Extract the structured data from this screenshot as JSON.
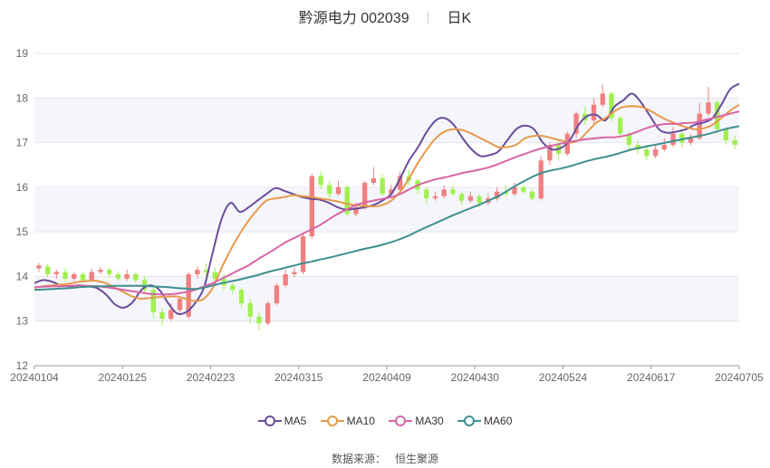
{
  "header": {
    "title": "黔源电力 002039",
    "period": "日K"
  },
  "source": {
    "label": "数据来源：",
    "name": "恒生聚源"
  },
  "chart_data": {
    "type": "candlestick",
    "title": "黔源电力 002039",
    "x_ticks": [
      "20240104",
      "20240125",
      "20240223",
      "20240315",
      "20240409",
      "20240430",
      "20240524",
      "20240617",
      "20240705"
    ],
    "y_ticks": [
      "12",
      "13",
      "14",
      "15",
      "16",
      "17",
      "18",
      "19"
    ],
    "ylim": [
      12,
      19
    ],
    "grid": true,
    "legend_position": "bottom",
    "colors": {
      "up": "#f08080",
      "down": "#a0f050",
      "ma5": "#6a4c9c",
      "ma10": "#e69a4c",
      "ma30": "#d965a6",
      "ma60": "#3e8f8f"
    },
    "series": [
      {
        "name": "MA5",
        "color": "#6a4c9c",
        "values": [
          13.85,
          13.92,
          13.88,
          13.8,
          13.78,
          13.8,
          13.78,
          13.74,
          13.6,
          13.38,
          13.3,
          13.42,
          13.7,
          13.8,
          13.7,
          13.4,
          13.17,
          13.2,
          13.4,
          13.75,
          14.55,
          15.3,
          15.65,
          15.45,
          15.55,
          15.7,
          15.85,
          15.98,
          15.92,
          15.85,
          15.78,
          15.74,
          15.72,
          15.65,
          15.55,
          15.5,
          15.52,
          15.55,
          15.6,
          15.7,
          15.85,
          16.2,
          16.6,
          16.9,
          17.25,
          17.5,
          17.55,
          17.4,
          17.1,
          16.85,
          16.7,
          16.72,
          16.8,
          17.05,
          17.3,
          17.38,
          17.3,
          17.0,
          16.85,
          16.88,
          17.05,
          17.4,
          17.6,
          17.62,
          17.5,
          17.8,
          17.95,
          18.1,
          17.9,
          17.6,
          17.3,
          17.22,
          17.25,
          17.3,
          17.4,
          17.45,
          17.55,
          17.85,
          18.2,
          18.32
        ]
      },
      {
        "name": "MA10",
        "color": "#e69a4c",
        "values": [
          13.75,
          13.78,
          13.8,
          13.82,
          13.84,
          13.88,
          13.9,
          13.9,
          13.85,
          13.75,
          13.65,
          13.55,
          13.5,
          13.52,
          13.54,
          13.55,
          13.55,
          13.5,
          13.45,
          13.5,
          13.75,
          14.2,
          14.6,
          14.95,
          15.25,
          15.5,
          15.7,
          15.75,
          15.78,
          15.82,
          15.8,
          15.78,
          15.75,
          15.72,
          15.68,
          15.63,
          15.6,
          15.58,
          15.57,
          15.6,
          15.7,
          15.9,
          16.2,
          16.55,
          16.85,
          17.1,
          17.25,
          17.3,
          17.28,
          17.2,
          17.1,
          17.0,
          16.9,
          16.9,
          16.95,
          17.1,
          17.15,
          17.15,
          17.1,
          17.05,
          17.0,
          17.05,
          17.25,
          17.45,
          17.55,
          17.7,
          17.8,
          17.82,
          17.8,
          17.72,
          17.6,
          17.5,
          17.42,
          17.35,
          17.3,
          17.32,
          17.4,
          17.55,
          17.72,
          17.85
        ]
      },
      {
        "name": "MA30",
        "color": "#d965a6",
        "values": [
          13.76,
          13.77,
          13.78,
          13.78,
          13.79,
          13.79,
          13.79,
          13.78,
          13.76,
          13.73,
          13.7,
          13.67,
          13.64,
          13.61,
          13.6,
          13.6,
          13.62,
          13.65,
          13.7,
          13.78,
          13.85,
          13.95,
          14.05,
          14.15,
          14.25,
          14.38,
          14.5,
          14.62,
          14.75,
          14.85,
          14.95,
          15.05,
          15.15,
          15.28,
          15.4,
          15.5,
          15.6,
          15.66,
          15.7,
          15.74,
          15.78,
          15.85,
          15.95,
          16.05,
          16.12,
          16.18,
          16.22,
          16.27,
          16.32,
          16.36,
          16.4,
          16.45,
          16.52,
          16.6,
          16.68,
          16.75,
          16.82,
          16.88,
          16.93,
          16.98,
          17.02,
          17.05,
          17.08,
          17.1,
          17.12,
          17.12,
          17.15,
          17.2,
          17.28,
          17.35,
          17.4,
          17.42,
          17.42,
          17.44,
          17.45,
          17.5,
          17.55,
          17.6,
          17.65,
          17.7
        ]
      },
      {
        "name": "MA60",
        "color": "#3e8f8f",
        "values": [
          13.7,
          13.71,
          13.72,
          13.73,
          13.74,
          13.76,
          13.77,
          13.78,
          13.78,
          13.79,
          13.79,
          13.79,
          13.79,
          13.78,
          13.77,
          13.76,
          13.74,
          13.73,
          13.72,
          13.75,
          13.8,
          13.85,
          13.89,
          13.93,
          13.98,
          14.03,
          14.09,
          14.14,
          14.19,
          14.24,
          14.29,
          14.33,
          14.38,
          14.42,
          14.47,
          14.52,
          14.57,
          14.62,
          14.66,
          14.71,
          14.77,
          14.84,
          14.92,
          15.02,
          15.11,
          15.2,
          15.29,
          15.38,
          15.46,
          15.54,
          15.62,
          15.71,
          15.8,
          15.92,
          16.04,
          16.15,
          16.25,
          16.33,
          16.38,
          16.42,
          16.47,
          16.53,
          16.59,
          16.64,
          16.68,
          16.73,
          16.79,
          16.85,
          16.89,
          16.93,
          16.97,
          17.01,
          17.05,
          17.09,
          17.13,
          17.17,
          17.22,
          17.28,
          17.33,
          17.37
        ]
      }
    ],
    "candles": [
      [
        14.18,
        14.25,
        14.3,
        14.1
      ],
      [
        14.22,
        14.05,
        14.28,
        13.98
      ],
      [
        14.05,
        14.1,
        14.15,
        13.95
      ],
      [
        14.1,
        13.95,
        14.18,
        13.88
      ],
      [
        13.95,
        14.05,
        14.1,
        13.9
      ],
      [
        14.05,
        13.92,
        14.1,
        13.85
      ],
      [
        13.92,
        14.1,
        14.18,
        13.88
      ],
      [
        14.1,
        14.15,
        14.22,
        14.05
      ],
      [
        14.15,
        14.05,
        14.2,
        13.98
      ],
      [
        14.05,
        13.95,
        14.12,
        13.9
      ],
      [
        13.95,
        14.05,
        14.15,
        13.9
      ],
      [
        14.05,
        13.92,
        14.1,
        13.85
      ],
      [
        13.92,
        13.7,
        14.0,
        13.6
      ],
      [
        13.7,
        13.2,
        13.75,
        13.05
      ],
      [
        13.2,
        13.05,
        13.3,
        12.9
      ],
      [
        13.05,
        13.25,
        13.4,
        13.0
      ],
      [
        13.25,
        13.5,
        13.55,
        13.2
      ],
      [
        13.1,
        14.05,
        14.1,
        13.05
      ],
      [
        14.05,
        14.15,
        14.22,
        13.95
      ],
      [
        14.15,
        14.1,
        14.3,
        14.0
      ],
      [
        14.1,
        13.95,
        14.2,
        13.85
      ],
      [
        13.95,
        13.8,
        14.05,
        13.7
      ],
      [
        13.8,
        13.7,
        13.85,
        13.6
      ],
      [
        13.7,
        13.4,
        13.75,
        13.3
      ],
      [
        13.4,
        13.1,
        13.5,
        12.95
      ],
      [
        13.1,
        12.95,
        13.2,
        12.8
      ],
      [
        12.95,
        13.4,
        13.45,
        12.9
      ],
      [
        13.4,
        13.8,
        13.85,
        13.35
      ],
      [
        13.8,
        14.05,
        14.15,
        13.75
      ],
      [
        14.05,
        14.1,
        14.2,
        13.98
      ],
      [
        14.1,
        14.9,
        14.95,
        14.05
      ],
      [
        14.9,
        16.25,
        16.3,
        14.85
      ],
      [
        16.25,
        16.05,
        16.35,
        15.95
      ],
      [
        16.05,
        15.85,
        16.15,
        15.75
      ],
      [
        15.85,
        16.0,
        16.15,
        15.8
      ],
      [
        16.0,
        15.4,
        16.05,
        15.35
      ],
      [
        15.4,
        15.55,
        15.65,
        15.35
      ],
      [
        15.55,
        16.1,
        16.15,
        15.5
      ],
      [
        16.1,
        16.2,
        16.45,
        16.05
      ],
      [
        16.2,
        15.85,
        16.3,
        15.8
      ],
      [
        15.85,
        15.95,
        16.05,
        15.75
      ],
      [
        15.95,
        16.25,
        16.35,
        15.9
      ],
      [
        16.25,
        16.15,
        16.4,
        16.05
      ],
      [
        16.15,
        15.95,
        16.2,
        15.85
      ],
      [
        15.95,
        15.75,
        16.0,
        15.65
      ],
      [
        15.75,
        15.8,
        15.9,
        15.7
      ],
      [
        15.8,
        15.95,
        16.05,
        15.75
      ],
      [
        15.95,
        15.85,
        16.05,
        15.8
      ],
      [
        15.85,
        15.7,
        15.9,
        15.6
      ],
      [
        15.7,
        15.8,
        15.9,
        15.65
      ],
      [
        15.8,
        15.65,
        15.85,
        15.55
      ],
      [
        15.65,
        15.75,
        15.85,
        15.6
      ],
      [
        15.75,
        15.9,
        16.0,
        15.7
      ],
      [
        15.9,
        15.85,
        16.05,
        15.8
      ],
      [
        15.85,
        16.0,
        16.1,
        15.8
      ],
      [
        16.0,
        15.9,
        16.05,
        15.85
      ],
      [
        15.9,
        15.75,
        15.95,
        15.7
      ],
      [
        15.75,
        16.6,
        16.7,
        15.7
      ],
      [
        16.6,
        16.95,
        17.0,
        16.5
      ],
      [
        16.95,
        16.75,
        17.05,
        16.6
      ],
      [
        16.75,
        17.2,
        17.25,
        16.7
      ],
      [
        17.2,
        17.65,
        17.7,
        17.1
      ],
      [
        17.65,
        17.5,
        17.8,
        17.4
      ],
      [
        17.5,
        17.85,
        18.0,
        17.4
      ],
      [
        17.85,
        18.1,
        18.3,
        17.8
      ],
      [
        18.1,
        17.55,
        18.15,
        17.45
      ],
      [
        17.55,
        17.2,
        17.6,
        17.1
      ],
      [
        17.2,
        16.95,
        17.25,
        16.8
      ],
      [
        16.95,
        16.85,
        17.05,
        16.75
      ],
      [
        16.85,
        16.7,
        16.95,
        16.6
      ],
      [
        16.7,
        16.85,
        16.95,
        16.65
      ],
      [
        16.85,
        16.95,
        17.1,
        16.8
      ],
      [
        16.95,
        17.2,
        17.35,
        16.9
      ],
      [
        17.2,
        17.0,
        17.25,
        16.9
      ],
      [
        17.0,
        17.1,
        17.2,
        16.95
      ],
      [
        17.1,
        17.65,
        17.9,
        17.05
      ],
      [
        17.65,
        17.9,
        18.25,
        17.6
      ],
      [
        17.9,
        17.3,
        17.95,
        17.2
      ],
      [
        17.3,
        17.05,
        17.35,
        16.95
      ],
      [
        17.05,
        16.95,
        17.15,
        16.85
      ]
    ]
  }
}
